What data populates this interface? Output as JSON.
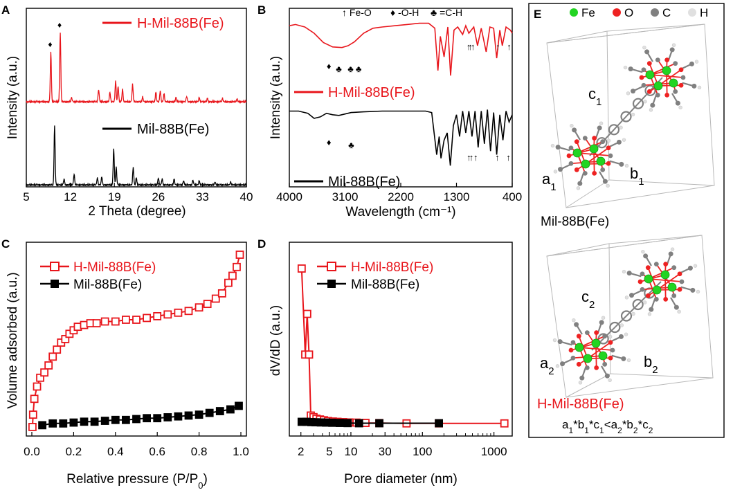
{
  "colors": {
    "red": "#e8151b",
    "black": "#000000",
    "fe": "#22d422",
    "o": "#ee2222",
    "c": "#808080",
    "h": "#e0e0e0",
    "frame": "#b8b8b8"
  },
  "chart_data": [
    {
      "panel": "A",
      "type": "line",
      "title": "",
      "xlabel": "2 Theta (degree)",
      "ylabel": "Intensity (a.u.)",
      "xlim": [
        5,
        40
      ],
      "x_ticks": [
        "5",
        "12",
        "19",
        "26",
        "33",
        "40"
      ],
      "series": [
        {
          "name": "H-Mil-88B(Fe)",
          "color": "red",
          "peaks": [
            [
              8.9,
              0.72
            ],
            [
              10.4,
              1.0
            ],
            [
              12.2,
              0.06
            ],
            [
              16.5,
              0.18
            ],
            [
              18.3,
              0.14
            ],
            [
              19.2,
              0.3
            ],
            [
              19.6,
              0.22
            ],
            [
              20.3,
              0.18
            ],
            [
              21.9,
              0.25
            ],
            [
              23.5,
              0.07
            ],
            [
              25.6,
              0.14
            ],
            [
              26.3,
              0.16
            ],
            [
              26.9,
              0.12
            ],
            [
              28.8,
              0.06
            ],
            [
              30.5,
              0.08
            ],
            [
              32.5,
              0.06
            ],
            [
              33.8,
              0.05
            ],
            [
              36.2,
              0.05
            ],
            [
              38.5,
              0.04
            ]
          ]
        },
        {
          "name": "Mil-88B(Fe)",
          "color": "black",
          "peaks": [
            [
              9.5,
              1.0
            ],
            [
              11.0,
              0.1
            ],
            [
              12.6,
              0.18
            ],
            [
              16.3,
              0.12
            ],
            [
              17.0,
              0.14
            ],
            [
              18.9,
              0.62
            ],
            [
              19.3,
              0.3
            ],
            [
              22.0,
              0.3
            ],
            [
              22.5,
              0.12
            ],
            [
              26.0,
              0.12
            ],
            [
              26.6,
              0.1
            ],
            [
              28.5,
              0.1
            ],
            [
              30.0,
              0.07
            ],
            [
              31.5,
              0.08
            ],
            [
              32.5,
              0.07
            ],
            [
              35.0,
              0.05
            ],
            [
              37.5,
              0.05
            ]
          ]
        }
      ],
      "markers": [
        {
          "symbol": "♦",
          "series": "H-Mil-88B(Fe)",
          "x": 8.9
        },
        {
          "symbol": "♦",
          "series": "H-Mil-88B(Fe)",
          "x": 10.4
        }
      ]
    },
    {
      "panel": "B",
      "type": "line",
      "title": "",
      "xlabel": "Wavelength (cm⁻¹)",
      "ylabel": "Intensity (a.u.)",
      "xlim": [
        4000,
        400
      ],
      "x_ticks": [
        "4000",
        "3100",
        "2200",
        "1300",
        "400"
      ],
      "legend_text": {
        "fe_o": "Fe-O",
        "o_h": "-O-H",
        "c_h": "=C-H"
      },
      "series": [
        {
          "name": "H-Mil-88B(Fe)",
          "color": "red",
          "points": [
            [
              4000,
              0.92
            ],
            [
              3900,
              0.94
            ],
            [
              3750,
              0.9
            ],
            [
              3600,
              0.8
            ],
            [
              3450,
              0.65
            ],
            [
              3300,
              0.58
            ],
            [
              3150,
              0.57
            ],
            [
              3050,
              0.6
            ],
            [
              2950,
              0.66
            ],
            [
              2800,
              0.8
            ],
            [
              2650,
              0.88
            ],
            [
              2500,
              0.9
            ],
            [
              2300,
              0.92
            ],
            [
              2100,
              0.94
            ],
            [
              1900,
              0.96
            ],
            [
              1750,
              0.96
            ],
            [
              1650,
              0.88
            ],
            [
              1600,
              0.2
            ],
            [
              1560,
              0.75
            ],
            [
              1500,
              0.42
            ],
            [
              1440,
              0.9
            ],
            [
              1395,
              0.12
            ],
            [
              1340,
              0.85
            ],
            [
              1280,
              0.9
            ],
            [
              1200,
              0.78
            ],
            [
              1150,
              0.92
            ],
            [
              1100,
              0.8
            ],
            [
              1020,
              0.9
            ],
            [
              960,
              0.6
            ],
            [
              900,
              0.88
            ],
            [
              820,
              0.5
            ],
            [
              760,
              0.9
            ],
            [
              700,
              0.88
            ],
            [
              650,
              0.4
            ],
            [
              600,
              0.85
            ],
            [
              560,
              0.6
            ],
            [
              500,
              0.9
            ],
            [
              430,
              0.85
            ],
            [
              400,
              0.8
            ]
          ]
        },
        {
          "name": "Mil-88B(Fe)",
          "color": "black",
          "points": [
            [
              4000,
              0.9
            ],
            [
              3850,
              0.9
            ],
            [
              3700,
              0.87
            ],
            [
              3600,
              0.8
            ],
            [
              3500,
              0.82
            ],
            [
              3400,
              0.87
            ],
            [
              3300,
              0.85
            ],
            [
              3200,
              0.84
            ],
            [
              3100,
              0.86
            ],
            [
              3000,
              0.88
            ],
            [
              2800,
              0.89
            ],
            [
              2500,
              0.9
            ],
            [
              2200,
              0.9
            ],
            [
              2000,
              0.9
            ],
            [
              1800,
              0.9
            ],
            [
              1700,
              0.88
            ],
            [
              1620,
              0.3
            ],
            [
              1580,
              0.55
            ],
            [
              1550,
              0.25
            ],
            [
              1500,
              0.5
            ],
            [
              1450,
              0.6
            ],
            [
              1400,
              0.15
            ],
            [
              1350,
              0.7
            ],
            [
              1300,
              0.85
            ],
            [
              1250,
              0.55
            ],
            [
              1200,
              0.9
            ],
            [
              1150,
              0.6
            ],
            [
              1100,
              0.9
            ],
            [
              1050,
              0.55
            ],
            [
              1000,
              0.9
            ],
            [
              950,
              0.4
            ],
            [
              900,
              0.9
            ],
            [
              850,
              0.45
            ],
            [
              800,
              0.92
            ],
            [
              750,
              0.35
            ],
            [
              700,
              0.88
            ],
            [
              650,
              0.3
            ],
            [
              600,
              0.85
            ],
            [
              550,
              0.5
            ],
            [
              500,
              0.9
            ],
            [
              450,
              0.75
            ],
            [
              400,
              0.85
            ]
          ]
        }
      ],
      "markers": [
        {
          "symbol": "♦",
          "series": "H-Mil-88B(Fe)",
          "x": 3360
        },
        {
          "symbol": "♣",
          "series": "H-Mil-88B(Fe)",
          "x": 3200
        },
        {
          "symbol": "♣",
          "series": "H-Mil-88B(Fe)",
          "x": 3010
        },
        {
          "symbol": "♣",
          "series": "H-Mil-88B(Fe)",
          "x": 2880
        },
        {
          "symbol": "↑",
          "series": "H-Mil-88B(Fe)",
          "x": 1105
        },
        {
          "symbol": "↑",
          "series": "H-Mil-88B(Fe)",
          "x": 1075
        },
        {
          "symbol": "↑",
          "series": "H-Mil-88B(Fe)",
          "x": 1035
        },
        {
          "symbol": "↑",
          "series": "H-Mil-88B(Fe)",
          "x": 630
        },
        {
          "symbol": "↑",
          "series": "H-Mil-88B(Fe)",
          "x": 450
        },
        {
          "symbol": "♦",
          "series": "Mil-88B(Fe)",
          "x": 3360
        },
        {
          "symbol": "♣",
          "series": "Mil-88B(Fe)",
          "x": 3000
        },
        {
          "symbol": "↑",
          "series": "Mil-88B(Fe)",
          "x": 1100
        },
        {
          "symbol": "↑",
          "series": "Mil-88B(Fe)",
          "x": 1060
        },
        {
          "symbol": "↑",
          "series": "Mil-88B(Fe)",
          "x": 990
        },
        {
          "symbol": "↑",
          "series": "Mil-88B(Fe)",
          "x": 640
        },
        {
          "symbol": "↑",
          "series": "Mil-88B(Fe)",
          "x": 460
        }
      ]
    },
    {
      "panel": "C",
      "type": "scatter",
      "title": "",
      "xlabel": "Relative pressure (P/P",
      "xlabel_sub": "0",
      "xlabel_end": ")",
      "ylabel": "Volume adsorbed (a.u.)",
      "xlim": [
        0,
        1
      ],
      "ylim": [
        0,
        1
      ],
      "x_ticks": [
        "0.0",
        "0.2",
        "0.4",
        "0.6",
        "0.8",
        "1.0"
      ],
      "series": [
        {
          "name": "H-Mil-88B(Fe)",
          "color": "red",
          "marker": "open-square",
          "points": [
            [
              0.003,
              0.02
            ],
            [
              0.006,
              0.09
            ],
            [
              0.012,
              0.18
            ],
            [
              0.025,
              0.25
            ],
            [
              0.04,
              0.3
            ],
            [
              0.06,
              0.33
            ],
            [
              0.08,
              0.37
            ],
            [
              0.1,
              0.42
            ],
            [
              0.12,
              0.46
            ],
            [
              0.14,
              0.5
            ],
            [
              0.16,
              0.52
            ],
            [
              0.18,
              0.55
            ],
            [
              0.2,
              0.57
            ],
            [
              0.22,
              0.59
            ],
            [
              0.25,
              0.6
            ],
            [
              0.28,
              0.61
            ],
            [
              0.31,
              0.61
            ],
            [
              0.35,
              0.62
            ],
            [
              0.4,
              0.62
            ],
            [
              0.45,
              0.63
            ],
            [
              0.5,
              0.63
            ],
            [
              0.55,
              0.64
            ],
            [
              0.6,
              0.65
            ],
            [
              0.65,
              0.66
            ],
            [
              0.7,
              0.67
            ],
            [
              0.75,
              0.68
            ],
            [
              0.8,
              0.7
            ],
            [
              0.84,
              0.72
            ],
            [
              0.88,
              0.75
            ],
            [
              0.91,
              0.78
            ],
            [
              0.94,
              0.84
            ],
            [
              0.96,
              0.88
            ],
            [
              0.98,
              0.93
            ],
            [
              0.995,
              1.0
            ]
          ]
        },
        {
          "name": "Mil-88B(Fe)",
          "color": "black",
          "marker": "filled-square",
          "points": [
            [
              0.05,
              0.03
            ],
            [
              0.1,
              0.04
            ],
            [
              0.15,
              0.04
            ],
            [
              0.2,
              0.045
            ],
            [
              0.25,
              0.05
            ],
            [
              0.3,
              0.05
            ],
            [
              0.35,
              0.055
            ],
            [
              0.4,
              0.06
            ],
            [
              0.45,
              0.06
            ],
            [
              0.5,
              0.065
            ],
            [
              0.55,
              0.07
            ],
            [
              0.6,
              0.07
            ],
            [
              0.65,
              0.075
            ],
            [
              0.7,
              0.08
            ],
            [
              0.75,
              0.085
            ],
            [
              0.8,
              0.09
            ],
            [
              0.85,
              0.1
            ],
            [
              0.9,
              0.11
            ],
            [
              0.95,
              0.12
            ],
            [
              0.99,
              0.14
            ]
          ]
        }
      ]
    },
    {
      "panel": "D",
      "type": "scatter",
      "title": "",
      "xlabel": "Pore diameter (nm)",
      "ylabel": "dV/dD (a.u.)",
      "x_scale": "log",
      "xlim": [
        1.8,
        1800
      ],
      "ylim": [
        0,
        1
      ],
      "x_ticks": [
        "2",
        "5",
        "10",
        "30",
        "100",
        "1000"
      ],
      "x_tick_values": [
        2,
        5,
        10,
        30,
        100,
        1000
      ],
      "series": [
        {
          "name": "H-Mil-88B(Fe)",
          "color": "red",
          "marker": "open-square",
          "points": [
            [
              2.05,
              1.0
            ],
            [
              2.3,
              0.45
            ],
            [
              2.45,
              0.71
            ],
            [
              2.6,
              0.45
            ],
            [
              2.75,
              0.06
            ],
            [
              3.0,
              0.05
            ],
            [
              3.3,
              0.04
            ],
            [
              3.7,
              0.035
            ],
            [
              4.2,
              0.03
            ],
            [
              4.8,
              0.025
            ],
            [
              5.6,
              0.022
            ],
            [
              6.5,
              0.02
            ],
            [
              7.8,
              0.018
            ],
            [
              9.5,
              0.016
            ],
            [
              12,
              0.015
            ],
            [
              16,
              0.013
            ],
            [
              25,
              0.012
            ],
            [
              60,
              0.01
            ],
            [
              170,
              0.01
            ],
            [
              1400,
              0.01
            ]
          ]
        },
        {
          "name": "Mil-88B(Fe)",
          "color": "black",
          "marker": "filled-square",
          "points": [
            [
              2.05,
              0.02
            ],
            [
              2.4,
              0.02
            ],
            [
              2.8,
              0.018
            ],
            [
              3.2,
              0.017
            ],
            [
              3.8,
              0.016
            ],
            [
              4.5,
              0.015
            ],
            [
              5.5,
              0.014
            ],
            [
              7,
              0.013
            ],
            [
              9,
              0.012
            ],
            [
              13,
              0.011
            ],
            [
              25,
              0.011
            ],
            [
              170,
              0.011
            ]
          ]
        }
      ]
    }
  ],
  "panel_labels": {
    "a": "A",
    "b": "B",
    "c": "C",
    "d": "D",
    "e": "E"
  },
  "panel_e": {
    "legend": {
      "fe": "Fe",
      "o": "O",
      "c": "C",
      "h": "H"
    },
    "structure1": {
      "name": "Mil-88B(Fe)",
      "a": "a",
      "b": "b",
      "c": "c",
      "sub": "1"
    },
    "structure2": {
      "name": "H-Mil-88B(Fe)",
      "a": "a",
      "b": "b",
      "c": "c",
      "sub": "2"
    },
    "formula": {
      "a": "a",
      "s1": "1",
      "m1": "*b",
      "s2": "1",
      "m2": "*c",
      "s3": "1",
      "lt": "<a",
      "s4": "2",
      "m3": "*b",
      "s5": "2",
      "m4": "*c",
      "s6": "2"
    }
  }
}
